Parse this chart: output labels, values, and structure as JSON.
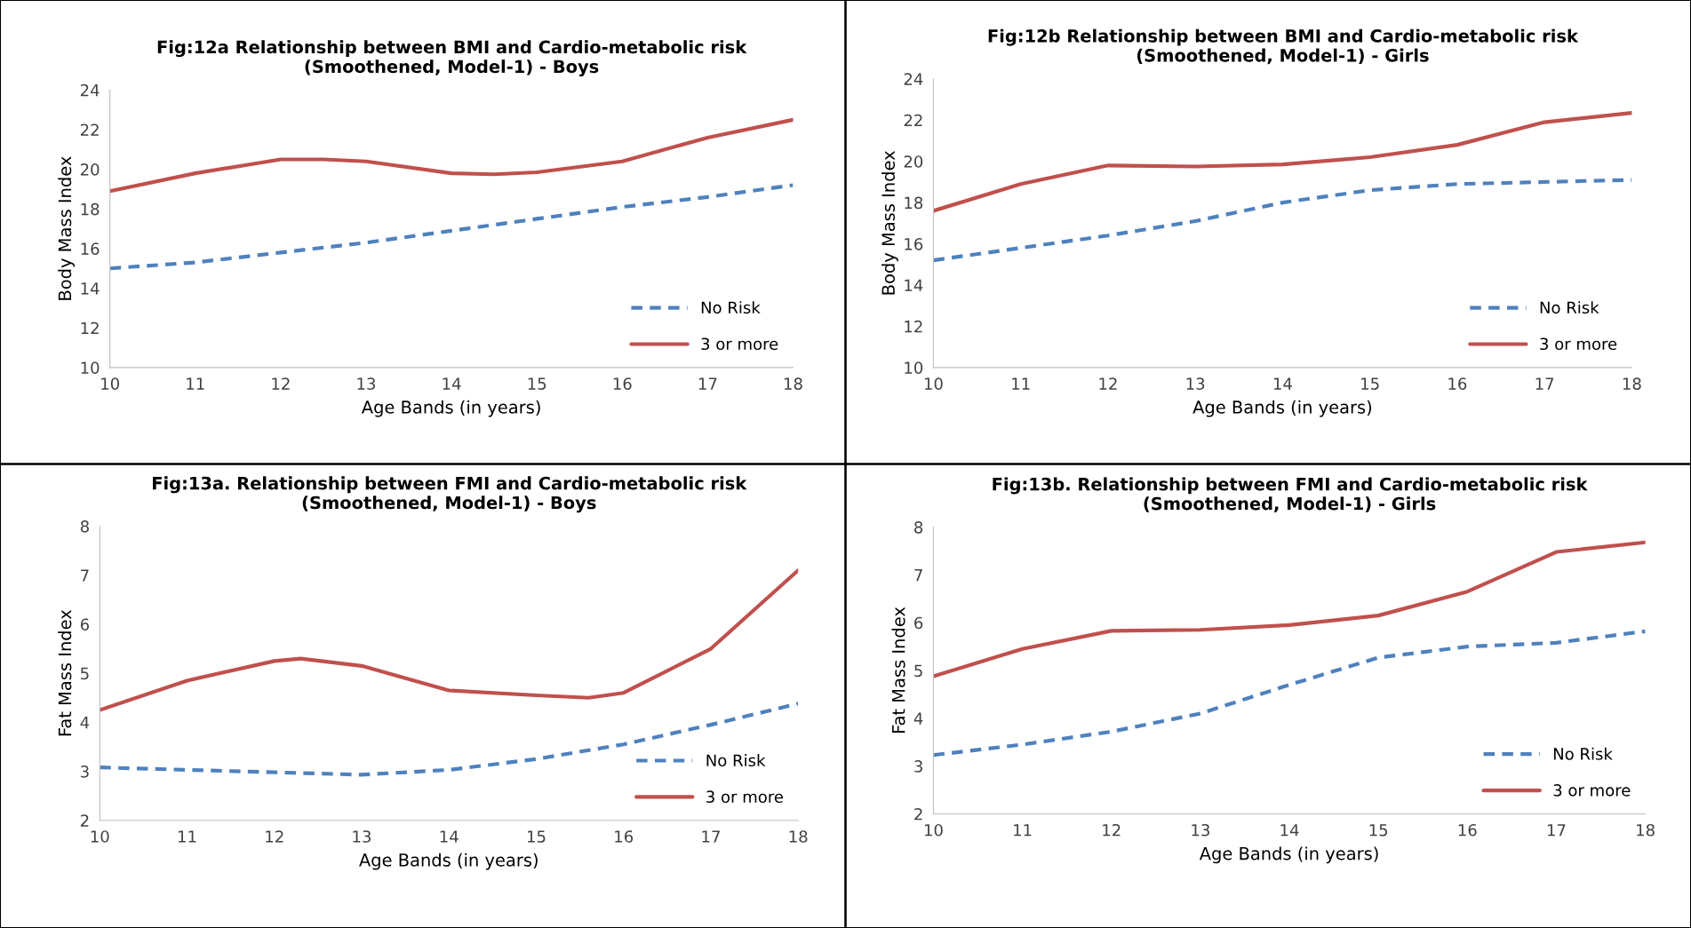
{
  "chart_data": [
    {
      "type": "line",
      "title": "Fig:12a Relationship between BMI and Cardio-metabolic risk\n(Smoothened, Model-1) - Boys",
      "xlabel": "Age Bands (in years)",
      "ylabel": "Body Mass Index",
      "xlim": [
        10,
        18
      ],
      "xticks": [
        10,
        11,
        12,
        13,
        14,
        15,
        16,
        17,
        18
      ],
      "ylim": [
        10,
        24
      ],
      "yticks": [
        10,
        12,
        14,
        16,
        18,
        20,
        22,
        24
      ],
      "legend": "bottom right",
      "grid": false,
      "series": [
        {
          "name": "No Risk",
          "color": "#4f81bd",
          "line_style": "dashed",
          "x": [
            10,
            11,
            12,
            13,
            14,
            15,
            16,
            17,
            18
          ],
          "values": [
            15.0,
            15.3,
            15.8,
            16.3,
            16.9,
            17.5,
            18.1,
            18.6,
            19.2
          ]
        },
        {
          "name": "3 or more",
          "color": "#c0504d",
          "line_style": "solid",
          "x": [
            10,
            11,
            12,
            12.5,
            13,
            14,
            14.5,
            15,
            16,
            17,
            18
          ],
          "values": [
            18.9,
            19.8,
            20.5,
            20.5,
            20.4,
            19.8,
            19.75,
            19.85,
            20.4,
            21.6,
            22.5
          ]
        }
      ]
    },
    {
      "type": "line",
      "title": "Fig:12b Relationship between BMI and Cardio-metabolic risk\n(Smoothened, Model-1) - Girls",
      "xlabel": "Age Bands (in years)",
      "ylabel": "Body Mass Index",
      "xlim": [
        10,
        18
      ],
      "xticks": [
        10,
        11,
        12,
        13,
        14,
        15,
        16,
        17,
        18
      ],
      "ylim": [
        10,
        24
      ],
      "yticks": [
        10,
        12,
        14,
        16,
        18,
        20,
        22,
        24
      ],
      "legend": "bottom right",
      "grid": false,
      "series": [
        {
          "name": "No Risk",
          "color": "#4f81bd",
          "line_style": "dashed",
          "x": [
            10,
            11,
            12,
            13,
            14,
            15,
            16,
            17,
            18
          ],
          "values": [
            15.2,
            15.8,
            16.4,
            17.1,
            18.0,
            18.6,
            18.9,
            19.0,
            19.1
          ]
        },
        {
          "name": "3 or more",
          "color": "#c0504d",
          "line_style": "solid",
          "x": [
            10,
            11,
            12,
            13,
            14,
            15,
            16,
            17,
            18
          ],
          "values": [
            17.6,
            18.9,
            19.8,
            19.75,
            19.85,
            20.2,
            20.8,
            21.9,
            22.35
          ]
        }
      ]
    },
    {
      "type": "line",
      "title": "Fig:13a. Relationship between FMI and Cardio-metabolic risk\n(Smoothened, Model-1) - Boys",
      "xlabel": "Age Bands (in years)",
      "ylabel": "Fat Mass Index",
      "xlim": [
        10,
        18
      ],
      "xticks": [
        10,
        11,
        12,
        13,
        14,
        15,
        16,
        17,
        18
      ],
      "ylim": [
        2,
        8
      ],
      "yticks": [
        2,
        3,
        4,
        5,
        6,
        7,
        8
      ],
      "legend": "bottom right",
      "grid": false,
      "series": [
        {
          "name": "No Risk",
          "color": "#4f81bd",
          "line_style": "dashed",
          "x": [
            10,
            11,
            12,
            13,
            14,
            15,
            16,
            17,
            18
          ],
          "values": [
            3.08,
            3.03,
            2.98,
            2.93,
            3.03,
            3.25,
            3.55,
            3.95,
            4.38
          ]
        },
        {
          "name": "3 or more",
          "color": "#c0504d",
          "line_style": "solid",
          "x": [
            10,
            11,
            12,
            12.3,
            13,
            14,
            15,
            15.6,
            16,
            17,
            18
          ],
          "values": [
            4.25,
            4.85,
            5.25,
            5.3,
            5.15,
            4.65,
            4.55,
            4.5,
            4.6,
            5.5,
            7.1
          ]
        }
      ]
    },
    {
      "type": "line",
      "title": "Fig:13b. Relationship between FMI and Cardio-metabolic risk\n(Smoothened, Model-1) - Girls",
      "xlabel": "Age Bands (in years)",
      "ylabel": "Fat Mass Index",
      "xlim": [
        10,
        18
      ],
      "xticks": [
        10,
        11,
        12,
        13,
        14,
        15,
        16,
        17,
        18
      ],
      "ylim": [
        2,
        8
      ],
      "yticks": [
        2,
        3,
        4,
        5,
        6,
        7,
        8
      ],
      "legend": "bottom right",
      "grid": false,
      "series": [
        {
          "name": "No Risk",
          "color": "#4f81bd",
          "line_style": "dashed",
          "x": [
            10,
            11,
            12,
            13,
            14,
            15,
            16,
            17,
            18
          ],
          "values": [
            3.23,
            3.45,
            3.72,
            4.1,
            4.7,
            5.27,
            5.5,
            5.58,
            5.82
          ]
        },
        {
          "name": "3 or more",
          "color": "#c0504d",
          "line_style": "solid",
          "x": [
            10,
            11,
            12,
            13,
            14,
            15,
            16,
            17,
            18
          ],
          "values": [
            4.88,
            5.45,
            5.83,
            5.85,
            5.95,
            6.15,
            6.65,
            7.48,
            7.68
          ]
        }
      ]
    }
  ]
}
